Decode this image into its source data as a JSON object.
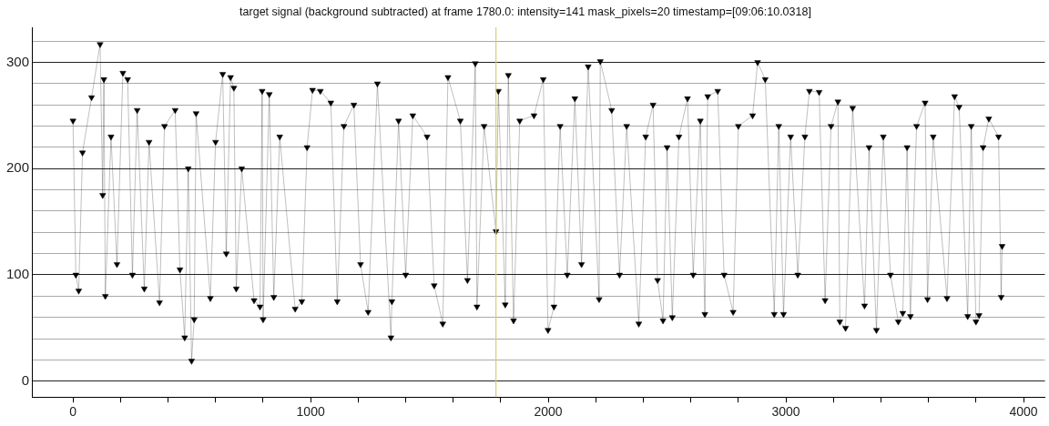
{
  "chart_data": {
    "type": "line",
    "title": "target signal (background subtracted) at frame 1780.0: intensity=141 mask_pixels=20 timestamp=[09:06:10.0318]",
    "x": [
      0,
      12,
      24,
      40,
      78,
      114,
      125,
      130,
      136,
      160,
      185,
      210,
      230,
      250,
      270,
      300,
      320,
      364,
      385,
      430,
      450,
      470,
      485,
      499,
      510,
      518,
      578,
      600,
      630,
      645,
      663,
      677,
      687,
      710,
      762,
      787,
      796,
      800,
      826,
      845,
      870,
      935,
      963,
      985,
      1008,
      1041,
      1085,
      1112,
      1140,
      1182,
      1210,
      1242,
      1281,
      1338,
      1342,
      1370,
      1400,
      1430,
      1490,
      1520,
      1556,
      1578,
      1630,
      1660,
      1693,
      1700,
      1730,
      1780,
      1790,
      1819,
      1832,
      1854,
      1880,
      1940,
      1979,
      1999,
      2024,
      2050,
      2080,
      2112,
      2140,
      2168,
      2214,
      2219,
      2267,
      2300,
      2330,
      2381,
      2410,
      2441,
      2460,
      2483,
      2500,
      2522,
      2550,
      2586,
      2610,
      2640,
      2659,
      2671,
      2713,
      2740,
      2778,
      2800,
      2860,
      2881,
      2913,
      2951,
      2970,
      2990,
      3020,
      3050,
      3080,
      3099,
      3140,
      3165,
      3190,
      3219,
      3227,
      3251,
      3281,
      3331,
      3350,
      3381,
      3410,
      3440,
      3473,
      3492,
      3510,
      3524,
      3550,
      3586,
      3596,
      3620,
      3678,
      3710,
      3729,
      3765,
      3780,
      3800,
      3813,
      3830,
      3854,
      3895,
      3906,
      3910
    ],
    "series": [
      {
        "color": "#000000",
        "values": [
          245,
          100,
          85,
          215,
          267,
          317,
          175,
          284,
          80,
          230,
          110,
          290,
          284,
          100,
          255,
          87,
          225,
          74,
          240,
          255,
          105,
          41,
          200,
          19,
          58,
          252,
          78,
          225,
          289,
          120,
          286,
          276,
          87,
          200,
          76,
          70,
          273,
          58,
          270,
          79,
          230,
          68,
          75,
          220,
          274,
          273,
          262,
          75,
          240,
          260,
          110,
          65,
          280,
          41,
          75,
          245,
          100,
          250,
          230,
          90,
          54,
          286,
          245,
          95,
          299,
          70,
          240,
          141,
          273,
          72,
          288,
          57,
          245,
          250,
          284,
          48,
          70,
          240,
          100,
          266,
          110,
          296,
          77,
          301,
          255,
          100,
          240,
          54,
          230,
          260,
          95,
          57,
          220,
          60,
          230,
          266,
          100,
          245,
          63,
          268,
          273,
          100,
          65,
          240,
          250,
          300,
          284,
          63,
          240,
          63,
          230,
          100,
          230,
          273,
          272,
          76,
          240,
          263,
          56,
          50,
          257,
          71,
          220,
          48,
          230,
          100,
          56,
          64,
          220,
          61,
          240,
          262,
          77,
          230,
          78,
          268,
          258,
          61,
          240,
          56,
          62,
          220,
          247,
          230,
          79,
          127
        ]
      }
    ],
    "xlim": [
      -173,
      4090
    ],
    "ylim": [
      -15,
      333
    ],
    "xticks": [
      0,
      {
        "value": 200,
        "label": null
      },
      {
        "value": 400,
        "label": null
      },
      {
        "value": 600,
        "label": null
      },
      {
        "value": 800,
        "label": null
      },
      1000,
      {
        "value": 1200,
        "label": null
      },
      {
        "value": 1400,
        "label": null
      },
      {
        "value": 1600,
        "label": null
      },
      {
        "value": 1800,
        "label": null
      },
      2000,
      {
        "value": 2200,
        "label": null
      },
      {
        "value": 2400,
        "label": null
      },
      {
        "value": 2600,
        "label": null
      },
      {
        "value": 2800,
        "label": null
      },
      3000,
      {
        "value": 3200,
        "label": null
      },
      {
        "value": 3400,
        "label": null
      },
      {
        "value": 3600,
        "label": null
      },
      {
        "value": 3800,
        "label": null
      },
      4000
    ],
    "yticks": [
      0,
      {
        "value": 20,
        "label": null
      },
      {
        "value": 40,
        "label": null
      },
      {
        "value": 60,
        "label": null
      },
      {
        "value": 80,
        "label": null
      },
      100,
      {
        "value": 120,
        "label": null
      },
      {
        "value": 140,
        "label": null
      },
      {
        "value": 160,
        "label": null
      },
      {
        "value": 180,
        "label": null
      },
      200,
      {
        "value": 220,
        "label": null
      },
      {
        "value": 240,
        "label": null
      },
      {
        "value": 260,
        "label": null
      },
      {
        "value": 280,
        "label": null
      },
      300,
      {
        "value": 320,
        "label": null
      }
    ],
    "ref_lines": [
      {
        "axis": "x",
        "value": 1780,
        "color": "#d2cf7a"
      }
    ],
    "grid": "y",
    "legend": false,
    "marker": "triangle",
    "line_style": "solid"
  }
}
